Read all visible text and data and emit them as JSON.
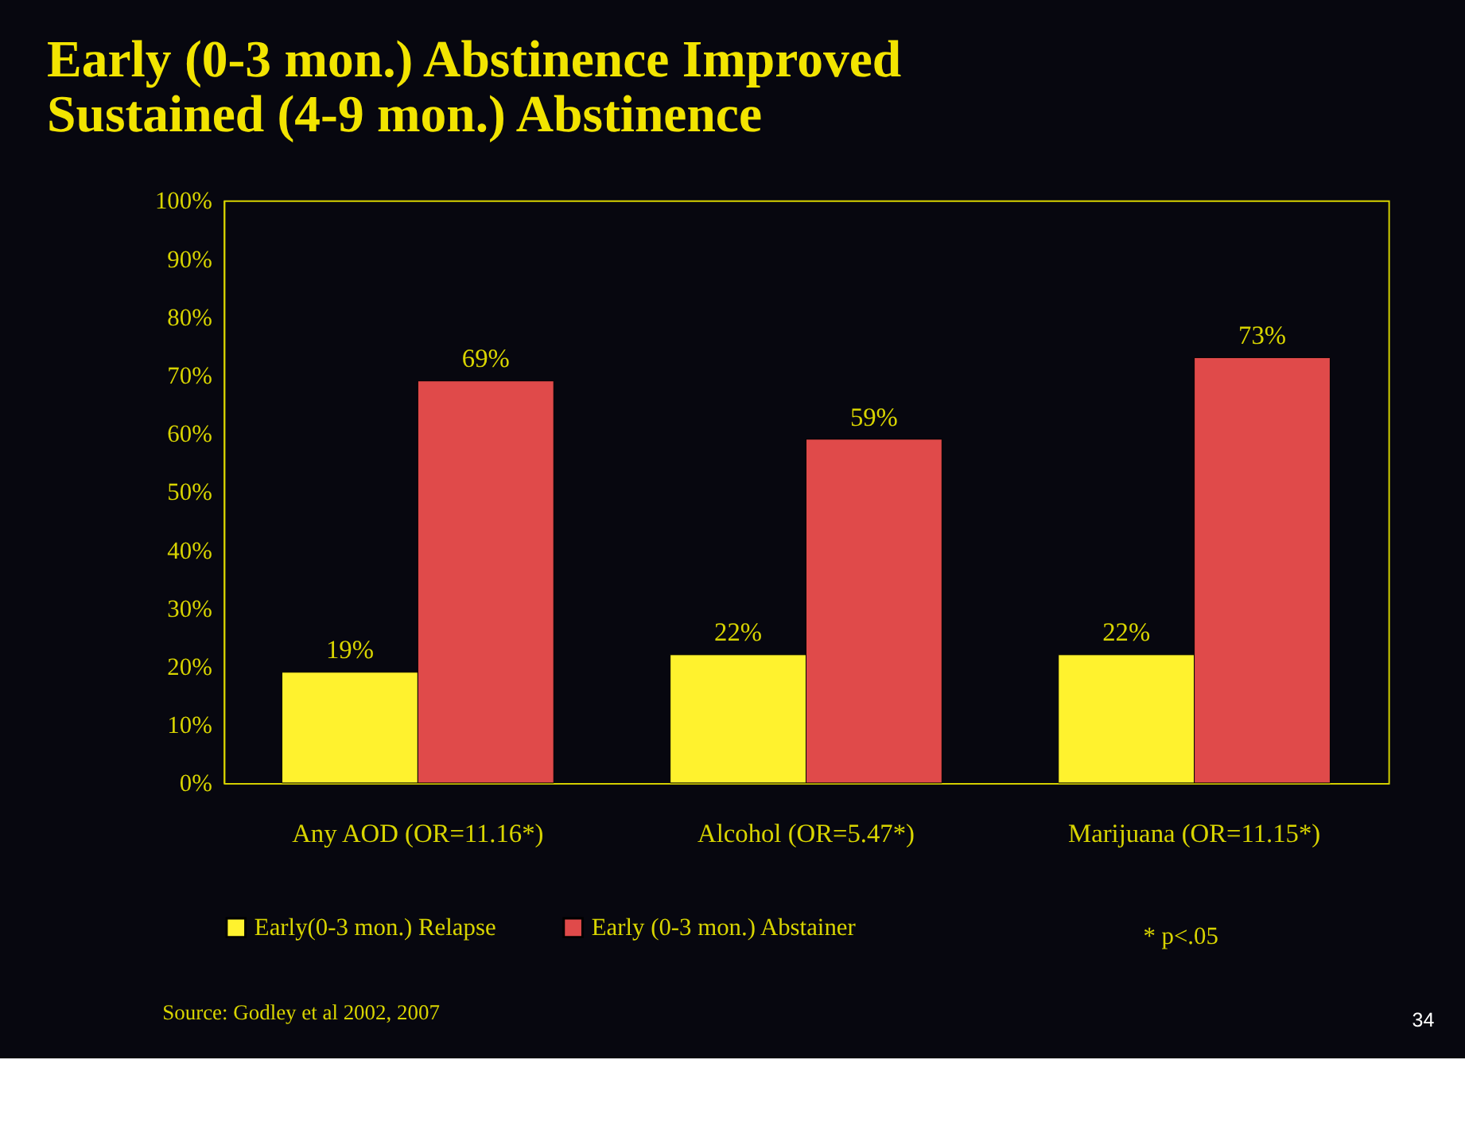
{
  "chart_data": {
    "type": "bar",
    "title": [
      "Early (0-3 mon.) Abstinence Improved",
      "Sustained (4-9 mon.) Abstinence"
    ],
    "categories": [
      "Any AOD (OR=11.16*)",
      "Alcohol (OR=5.47*)",
      "Marijuana (OR=11.15*)"
    ],
    "series": [
      {
        "name": "Early(0-3 mon.) Relapse",
        "color": "#fff22e",
        "values": [
          19,
          22,
          22
        ],
        "value_labels": [
          "19%",
          "22%",
          "22%"
        ]
      },
      {
        "name": "Early (0-3 mon.) Abstainer",
        "color": "#e04a4a",
        "values": [
          69,
          59,
          73
        ],
        "value_labels": [
          "69%",
          "59%",
          "73%"
        ]
      }
    ],
    "ylim": [
      0,
      100
    ],
    "yticks": [
      {
        "value": 0,
        "label": "0%"
      },
      {
        "value": 10,
        "label": "10%"
      },
      {
        "value": 20,
        "label": "20%"
      },
      {
        "value": 30,
        "label": "30%"
      },
      {
        "value": 40,
        "label": "40%"
      },
      {
        "value": 50,
        "label": "50%"
      },
      {
        "value": 60,
        "label": "60%"
      },
      {
        "value": 70,
        "label": "70%"
      },
      {
        "value": 80,
        "label": "80%"
      },
      {
        "value": 90,
        "label": "90%"
      },
      {
        "value": 100,
        "label": "100%"
      }
    ],
    "grid": false,
    "legend": "bottom",
    "annotations": [
      "* p<.05",
      "Source: Godley et al 2002, 2007",
      "34"
    ]
  }
}
